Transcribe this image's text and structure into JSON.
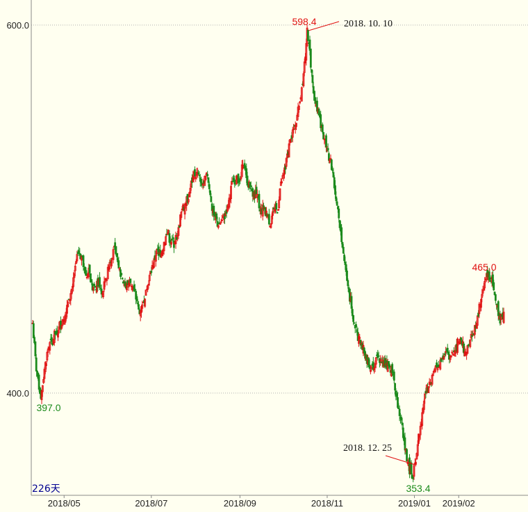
{
  "chart_data": {
    "type": "candlestick",
    "y_ticks": [
      {
        "value": 600,
        "label": "600.0"
      },
      {
        "value": 400,
        "label": "400.0"
      }
    ],
    "x_ticks": [
      {
        "label": "2018/05",
        "date": "2018-05-01"
      },
      {
        "label": "2018/07",
        "date": "2018-07-01"
      },
      {
        "label": "2018/09",
        "date": "2018-09-01"
      },
      {
        "label": "2018/11",
        "date": "2018-11-01"
      },
      {
        "label": "2019/01",
        "date": "2019-01-01"
      },
      {
        "label": "2019/02",
        "date": "2019-02-01"
      }
    ],
    "ylim": [
      328,
      614
    ],
    "period_label": "226天",
    "annotations": {
      "high_value": "598.4",
      "high_date": "2018. 10. 10",
      "low_value": "353.4",
      "low_date": "2018. 12. 25",
      "start_low_value": "397.0",
      "recent_high_value": "465.0"
    },
    "colors": {
      "up": "#e01010",
      "down": "#1c8a1c",
      "grid": "#b0b0b0",
      "background": "#fffff0",
      "annotation_red": "#e01010",
      "annotation_green": "#1a8a1a",
      "period": "#000090"
    },
    "close_path": [
      [
        0,
        438
      ],
      [
        4,
        412
      ],
      [
        7,
        402
      ],
      [
        9,
        397
      ],
      [
        13,
        413
      ],
      [
        17,
        424
      ],
      [
        21,
        428
      ],
      [
        25,
        432
      ],
      [
        29,
        436
      ],
      [
        33,
        440
      ],
      [
        37,
        444
      ],
      [
        40,
        451
      ],
      [
        44,
        458
      ],
      [
        47,
        469
      ],
      [
        51,
        476
      ],
      [
        55,
        474
      ],
      [
        57,
        467
      ],
      [
        60,
        463
      ],
      [
        62,
        468
      ],
      [
        66,
        456
      ],
      [
        70,
        456
      ],
      [
        73,
        462
      ],
      [
        77,
        454
      ],
      [
        81,
        462
      ],
      [
        85,
        471
      ],
      [
        89,
        478
      ],
      [
        93,
        474
      ],
      [
        96,
        468
      ],
      [
        99,
        462
      ],
      [
        103,
        457
      ],
      [
        107,
        461
      ],
      [
        111,
        458
      ],
      [
        114,
        451
      ],
      [
        118,
        443
      ],
      [
        121,
        448
      ],
      [
        125,
        456
      ],
      [
        129,
        464
      ],
      [
        133,
        469
      ],
      [
        137,
        478
      ],
      [
        141,
        474
      ],
      [
        145,
        482
      ],
      [
        149,
        487
      ],
      [
        153,
        482
      ],
      [
        157,
        482
      ],
      [
        161,
        490
      ],
      [
        165,
        500
      ],
      [
        169,
        503
      ],
      [
        173,
        509
      ],
      [
        177,
        518
      ],
      [
        181,
        520
      ],
      [
        185,
        515
      ],
      [
        189,
        514
      ],
      [
        193,
        518
      ],
      [
        197,
        504
      ],
      [
        201,
        496
      ],
      [
        205,
        491
      ],
      [
        209,
        494
      ],
      [
        213,
        498
      ],
      [
        217,
        506
      ],
      [
        221,
        515
      ],
      [
        225,
        518
      ],
      [
        229,
        516
      ],
      [
        232,
        524
      ],
      [
        236,
        517
      ],
      [
        240,
        511
      ],
      [
        244,
        509
      ],
      [
        248,
        508
      ],
      [
        251,
        499
      ],
      [
        255,
        500
      ],
      [
        259,
        496
      ],
      [
        263,
        492
      ],
      [
        267,
        500
      ],
      [
        270,
        498
      ],
      [
        273,
        511
      ],
      [
        277,
        519
      ],
      [
        281,
        530
      ],
      [
        285,
        538
      ],
      [
        289,
        545
      ],
      [
        292,
        551
      ],
      [
        294,
        556
      ],
      [
        297,
        566
      ],
      [
        300,
        580
      ],
      [
        302,
        590
      ],
      [
        303,
        598.4
      ],
      [
        305,
        590
      ],
      [
        307,
        577
      ],
      [
        310,
        563
      ],
      [
        313,
        557
      ],
      [
        316,
        551
      ],
      [
        319,
        545
      ],
      [
        322,
        538
      ],
      [
        325,
        533
      ],
      [
        328,
        527
      ],
      [
        331,
        521
      ],
      [
        334,
        508
      ],
      [
        337,
        500
      ],
      [
        340,
        488
      ],
      [
        343,
        476
      ],
      [
        346,
        466
      ],
      [
        349,
        455
      ],
      [
        352,
        446
      ],
      [
        355,
        438
      ],
      [
        358,
        433
      ],
      [
        362,
        426
      ],
      [
        366,
        422
      ],
      [
        370,
        418
      ],
      [
        374,
        414
      ],
      [
        378,
        416
      ],
      [
        382,
        420
      ],
      [
        386,
        418
      ],
      [
        390,
        416
      ],
      [
        394,
        414
      ],
      [
        398,
        410
      ],
      [
        402,
        398
      ],
      [
        406,
        386
      ],
      [
        410,
        374
      ],
      [
        414,
        362
      ],
      [
        418,
        356
      ],
      [
        420,
        353.4
      ],
      [
        422,
        362
      ],
      [
        425,
        372
      ],
      [
        428,
        382
      ],
      [
        431,
        392
      ],
      [
        434,
        400
      ],
      [
        438,
        406
      ],
      [
        442,
        410
      ],
      [
        446,
        414
      ],
      [
        450,
        418
      ],
      [
        454,
        420
      ],
      [
        458,
        422
      ],
      [
        462,
        420
      ],
      [
        466,
        423
      ],
      [
        470,
        428
      ],
      [
        474,
        426
      ],
      [
        478,
        422
      ],
      [
        482,
        426
      ],
      [
        486,
        432
      ],
      [
        490,
        438
      ],
      [
        494,
        448
      ],
      [
        497,
        456
      ],
      [
        500,
        462
      ],
      [
        503,
        465
      ],
      [
        506,
        462
      ],
      [
        509,
        456
      ],
      [
        512,
        448
      ],
      [
        514,
        442
      ],
      [
        516,
        438
      ],
      [
        518,
        442
      ],
      [
        520,
        444
      ]
    ]
  }
}
